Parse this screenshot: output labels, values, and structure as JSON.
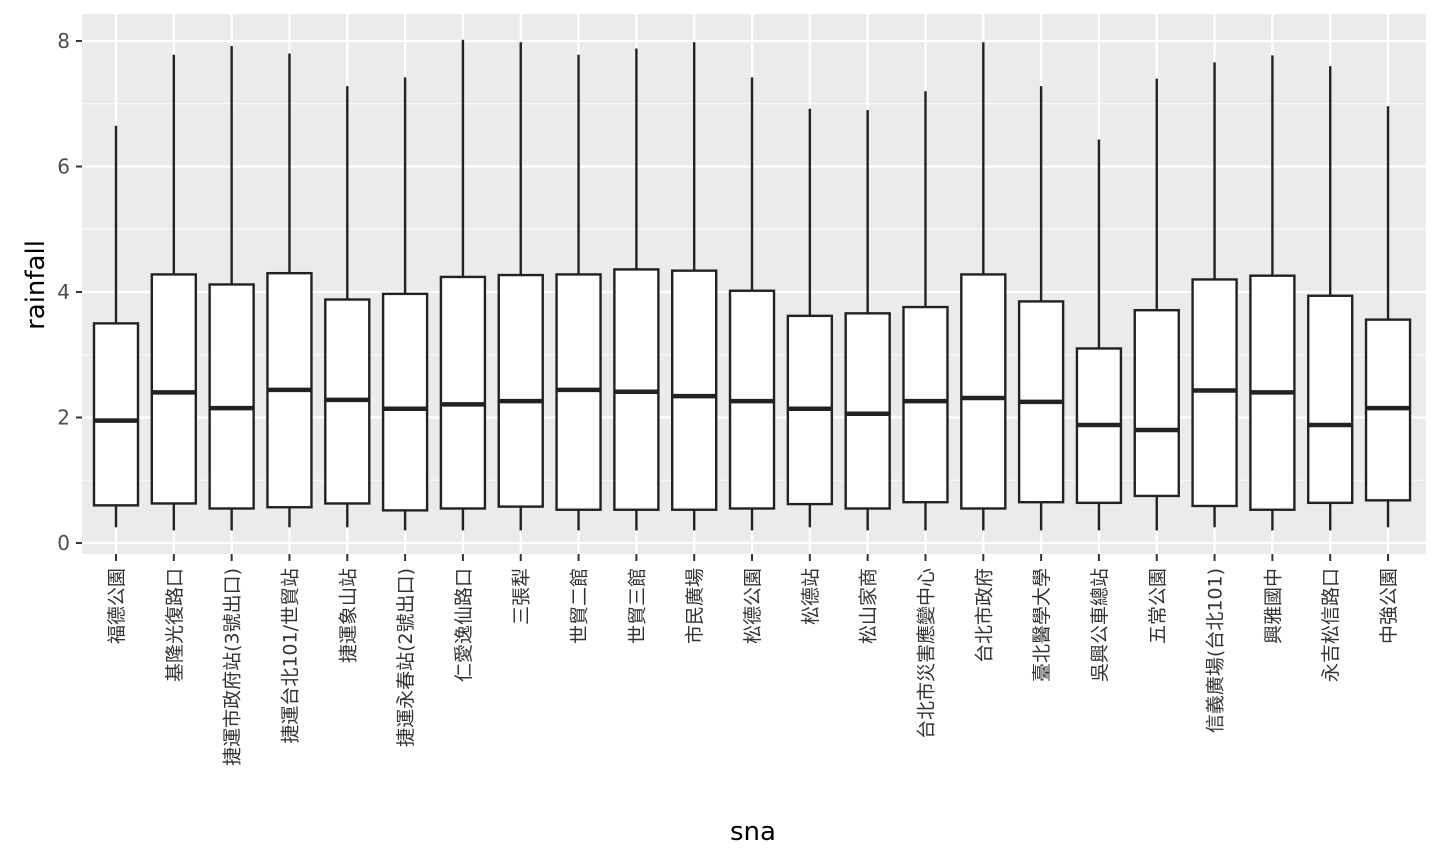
{
  "chart_data": {
    "type": "boxplot",
    "xlabel": "sna",
    "ylabel": "rainfall",
    "ylim": [
      -0.2,
      8.4
    ],
    "yticks": [
      0,
      2,
      4,
      6,
      8
    ],
    "grid": true,
    "background": "#ebebeb",
    "categories": [
      "福德公園",
      "基隆光復路口",
      "捷運市政府站(3號出口)",
      "捷運台北101/世貿站",
      "捷運象山站",
      "捷運永春站(2號出口)",
      "仁愛逸仙路口",
      "三張犁",
      "世貿二館",
      "世貿三館",
      "市民廣場",
      "松德公園",
      "松德站",
      "松山家商",
      "台北市災害應變中心",
      "台北市政府",
      "臺北醫學大學",
      "吳興公車總站",
      "五常公園",
      "信義廣場(台北101)",
      "興雅國中",
      "永吉松信路口",
      "中強公園"
    ],
    "boxes": [
      {
        "min": 0.25,
        "q1": 0.6,
        "median": 1.95,
        "q3": 3.5,
        "max": 6.65
      },
      {
        "min": 0.2,
        "q1": 0.63,
        "median": 2.4,
        "q3": 4.28,
        "max": 7.78
      },
      {
        "min": 0.2,
        "q1": 0.55,
        "median": 2.15,
        "q3": 4.12,
        "max": 7.92
      },
      {
        "min": 0.25,
        "q1": 0.57,
        "median": 2.44,
        "q3": 4.3,
        "max": 7.8
      },
      {
        "min": 0.25,
        "q1": 0.63,
        "median": 2.28,
        "q3": 3.88,
        "max": 7.28
      },
      {
        "min": 0.2,
        "q1": 0.52,
        "median": 2.14,
        "q3": 3.97,
        "max": 7.42
      },
      {
        "min": 0.2,
        "q1": 0.55,
        "median": 2.21,
        "q3": 4.24,
        "max": 8.02
      },
      {
        "min": 0.2,
        "q1": 0.58,
        "median": 2.26,
        "q3": 4.27,
        "max": 7.98
      },
      {
        "min": 0.2,
        "q1": 0.53,
        "median": 2.44,
        "q3": 4.28,
        "max": 7.78
      },
      {
        "min": 0.2,
        "q1": 0.53,
        "median": 2.41,
        "q3": 4.36,
        "max": 7.88
      },
      {
        "min": 0.2,
        "q1": 0.53,
        "median": 2.34,
        "q3": 4.34,
        "max": 7.98
      },
      {
        "min": 0.2,
        "q1": 0.55,
        "median": 2.26,
        "q3": 4.02,
        "max": 7.42
      },
      {
        "min": 0.25,
        "q1": 0.62,
        "median": 2.14,
        "q3": 3.62,
        "max": 6.92
      },
      {
        "min": 0.2,
        "q1": 0.55,
        "median": 2.06,
        "q3": 3.66,
        "max": 6.9
      },
      {
        "min": 0.2,
        "q1": 0.65,
        "median": 2.26,
        "q3": 3.76,
        "max": 7.2
      },
      {
        "min": 0.2,
        "q1": 0.55,
        "median": 2.31,
        "q3": 4.28,
        "max": 7.98
      },
      {
        "min": 0.2,
        "q1": 0.65,
        "median": 2.25,
        "q3": 3.85,
        "max": 7.28
      },
      {
        "min": 0.2,
        "q1": 0.64,
        "median": 1.88,
        "q3": 3.1,
        "max": 6.43
      },
      {
        "min": 0.2,
        "q1": 0.75,
        "median": 1.8,
        "q3": 3.71,
        "max": 7.4
      },
      {
        "min": 0.25,
        "q1": 0.59,
        "median": 2.43,
        "q3": 4.2,
        "max": 7.66
      },
      {
        "min": 0.2,
        "q1": 0.53,
        "median": 2.4,
        "q3": 4.26,
        "max": 7.77
      },
      {
        "min": 0.2,
        "q1": 0.64,
        "median": 1.88,
        "q3": 3.94,
        "max": 7.6
      },
      {
        "min": 0.25,
        "q1": 0.68,
        "median": 2.15,
        "q3": 3.56,
        "max": 6.96
      }
    ]
  }
}
